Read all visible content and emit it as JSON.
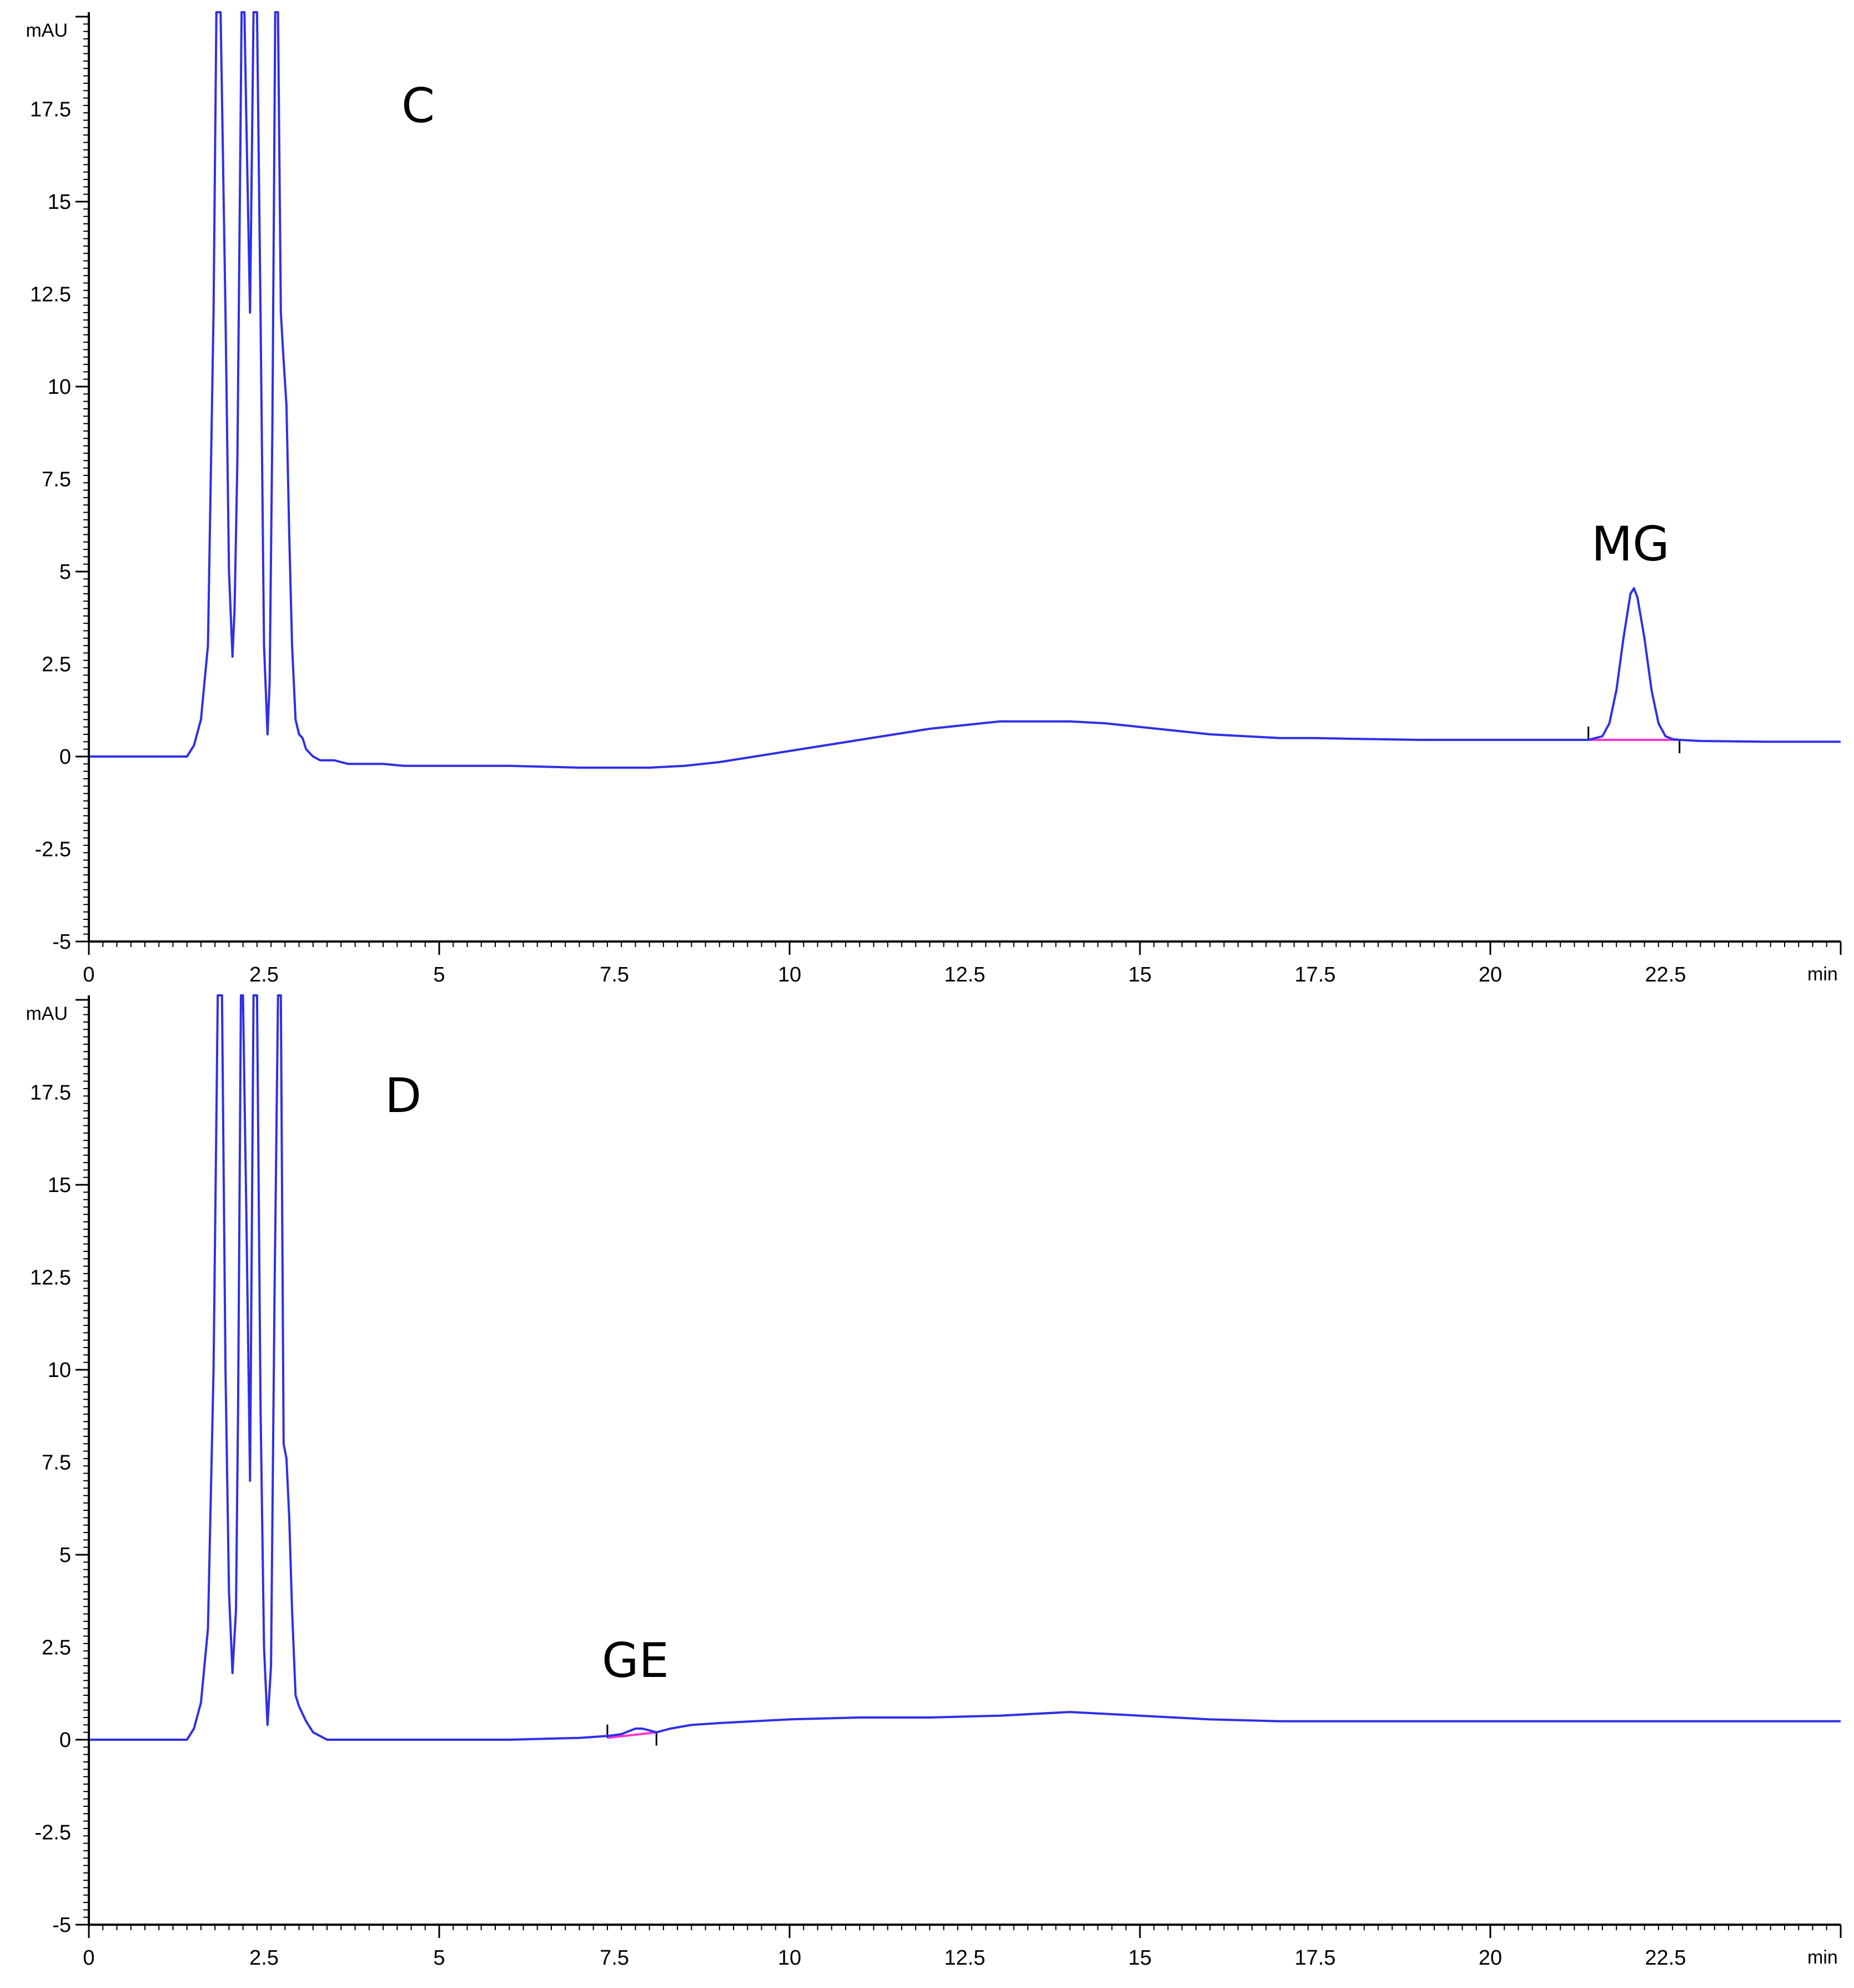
{
  "colors": {
    "trace": "#2f2fe8",
    "baseline": "#ff33cc",
    "axis": "#000000"
  },
  "chart_data": [
    {
      "type": "line",
      "panel_label": "C",
      "y_unit_label": "mAU",
      "x_unit_label": "min",
      "xlim": [
        0,
        25
      ],
      "ylim": [
        -5,
        20
      ],
      "x_ticks": [
        "0",
        "2.5",
        "5",
        "7.5",
        "10",
        "12.5",
        "15",
        "17.5",
        "20",
        "22.5"
      ],
      "y_ticks": [
        "17.5",
        "15",
        "12.5",
        "10",
        "7.5",
        "5",
        "2.5",
        "0",
        "-2.5",
        "-5"
      ],
      "peak_label": "MG",
      "peak_label_at": [
        22.0,
        5.3
      ],
      "integration_baseline": {
        "from": [
          21.4,
          0.45
        ],
        "to": [
          22.7,
          0.45
        ],
        "markers": [
          21.4,
          22.7
        ]
      },
      "series": [
        {
          "x": [
            0,
            1.4,
            1.5,
            1.6,
            1.7,
            1.78,
            1.82,
            1.88,
            1.95,
            2.0,
            2.05,
            2.08,
            2.12,
            2.15,
            2.18,
            2.22,
            2.25,
            2.3,
            2.35,
            2.4,
            2.45,
            2.5,
            2.55,
            2.58,
            2.62,
            2.66,
            2.7,
            2.74,
            2.78,
            2.82,
            2.86,
            2.9,
            2.95,
            3.0,
            3.05,
            3.1,
            3.2,
            3.3,
            3.4,
            3.5,
            3.6,
            3.7,
            3.8,
            4.0,
            4.2,
            4.5,
            5.0,
            6.0,
            7.0,
            7.5,
            8.0,
            8.5,
            9.0,
            9.5,
            10.0,
            10.5,
            11.0,
            11.5,
            12.0,
            12.5,
            13.0,
            13.5,
            14.0,
            14.5,
            15.0,
            15.5,
            16.0,
            16.5,
            17.0,
            17.5,
            18.0,
            19.0,
            20.0,
            21.0,
            21.4,
            21.6,
            21.7,
            21.8,
            21.9,
            22.0,
            22.05,
            22.1,
            22.2,
            22.3,
            22.4,
            22.5,
            22.6,
            22.7,
            23.0,
            24.0,
            25.0
          ],
          "y": [
            0,
            0,
            0.3,
            1.0,
            3.0,
            12.0,
            20.5,
            20.5,
            12.0,
            5.0,
            2.7,
            4.0,
            8.0,
            14.0,
            20.5,
            20.5,
            17.0,
            12.0,
            20.5,
            20.5,
            12.0,
            3.0,
            0.6,
            2.0,
            9.0,
            20.5,
            20.5,
            12.0,
            10.7,
            9.5,
            6.0,
            3.0,
            1.0,
            0.6,
            0.5,
            0.2,
            0.0,
            -0.1,
            -0.1,
            -0.1,
            -0.15,
            -0.2,
            -0.2,
            -0.2,
            -0.2,
            -0.25,
            -0.25,
            -0.25,
            -0.3,
            -0.3,
            -0.3,
            -0.25,
            -0.15,
            0.0,
            0.15,
            0.3,
            0.45,
            0.6,
            0.75,
            0.85,
            0.95,
            0.95,
            0.95,
            0.9,
            0.8,
            0.7,
            0.6,
            0.55,
            0.5,
            0.5,
            0.48,
            0.45,
            0.45,
            0.45,
            0.45,
            0.55,
            0.9,
            1.8,
            3.2,
            4.4,
            4.55,
            4.3,
            3.2,
            1.8,
            0.9,
            0.55,
            0.47,
            0.45,
            0.42,
            0.4,
            0.4
          ]
        }
      ]
    },
    {
      "type": "line",
      "panel_label": "D",
      "y_unit_label": "mAU",
      "x_unit_label": "min",
      "xlim": [
        0,
        25
      ],
      "ylim": [
        -5,
        20
      ],
      "x_ticks": [
        "0",
        "2.5",
        "5",
        "7.5",
        "10",
        "12.5",
        "15",
        "17.5",
        "20",
        "22.5"
      ],
      "y_ticks": [
        "17.5",
        "15",
        "12.5",
        "10",
        "7.5",
        "5",
        "2.5",
        "0",
        "-2.5",
        "-5"
      ],
      "peak_label": "GE",
      "peak_label_at": [
        7.8,
        1.7
      ],
      "integration_baseline": {
        "from": [
          7.4,
          0.05
        ],
        "to": [
          8.1,
          0.2
        ],
        "markers": [
          7.4,
          8.1
        ]
      },
      "series": [
        {
          "x": [
            0,
            1.4,
            1.5,
            1.6,
            1.7,
            1.78,
            1.84,
            1.9,
            1.95,
            2.0,
            2.05,
            2.1,
            2.13,
            2.17,
            2.2,
            2.25,
            2.3,
            2.35,
            2.4,
            2.45,
            2.5,
            2.55,
            2.6,
            2.65,
            2.7,
            2.74,
            2.78,
            2.82,
            2.86,
            2.9,
            2.95,
            3.0,
            3.05,
            3.1,
            3.2,
            3.4,
            3.6,
            4.0,
            5.0,
            6.0,
            7.0,
            7.4,
            7.6,
            7.8,
            7.9,
            8.0,
            8.1,
            8.3,
            8.6,
            9.0,
            10.0,
            11.0,
            12.0,
            13.0,
            14.0,
            15.0,
            16.0,
            17.0,
            18.0,
            19.0,
            20.0,
            21.0,
            22.0,
            23.0,
            24.0,
            25.0
          ],
          "y": [
            0,
            0,
            0.3,
            1.0,
            3.0,
            10.0,
            20.5,
            20.5,
            10.0,
            4.0,
            1.8,
            3.5,
            9.0,
            20.5,
            20.5,
            14.0,
            7.0,
            20.5,
            20.5,
            9.0,
            2.5,
            0.4,
            2.0,
            12.0,
            20.5,
            20.5,
            8.0,
            7.6,
            6.0,
            3.5,
            1.2,
            0.9,
            0.7,
            0.5,
            0.2,
            0.0,
            0.0,
            0.0,
            0.0,
            0.0,
            0.05,
            0.1,
            0.15,
            0.3,
            0.3,
            0.25,
            0.2,
            0.3,
            0.4,
            0.45,
            0.55,
            0.6,
            0.6,
            0.65,
            0.75,
            0.65,
            0.55,
            0.5,
            0.5,
            0.5,
            0.5,
            0.5,
            0.5,
            0.5,
            0.5,
            0.5
          ]
        }
      ]
    }
  ]
}
